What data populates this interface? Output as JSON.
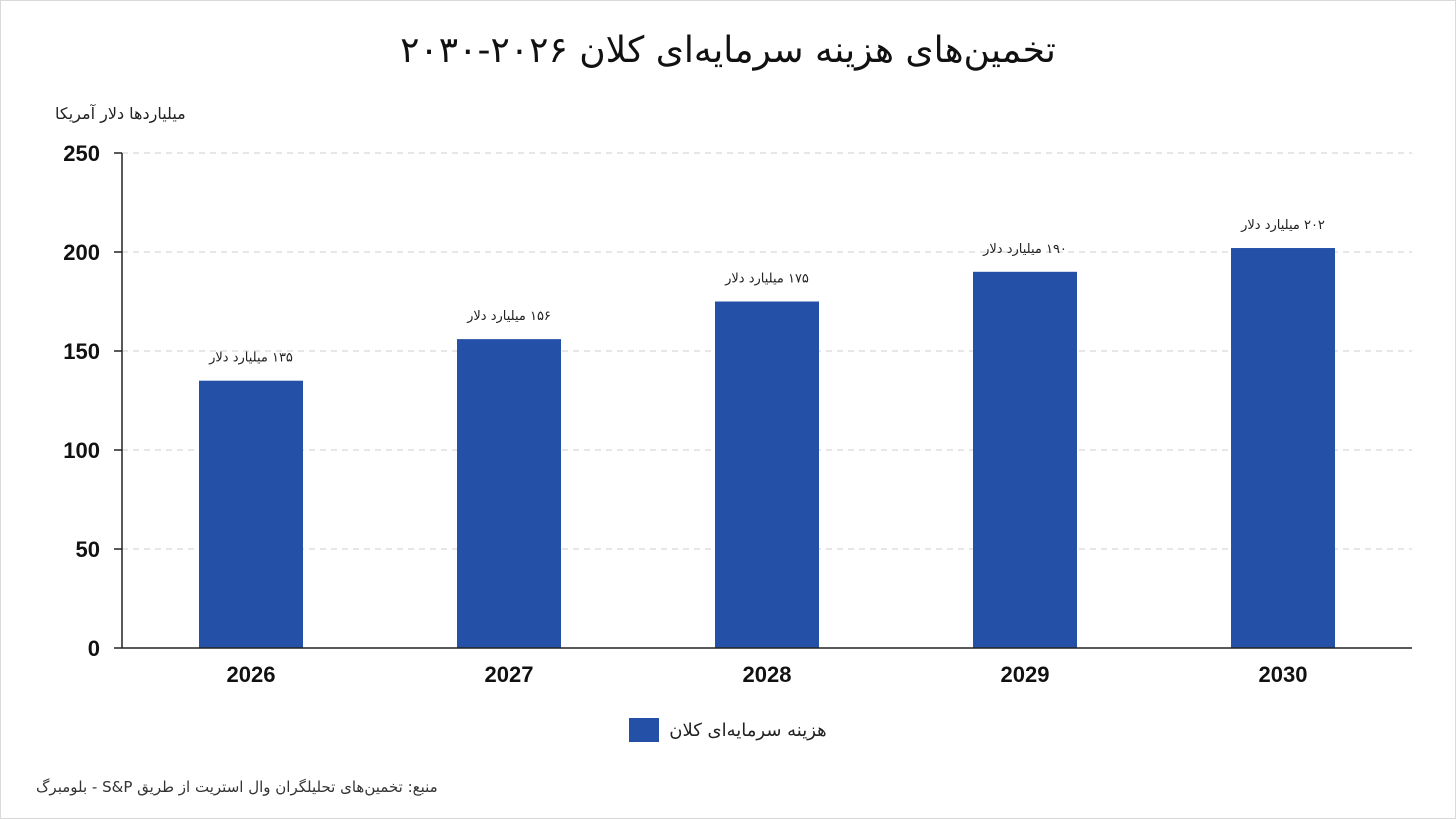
{
  "chart_data": {
    "type": "bar",
    "title": "تخمین‌های هزینه سرمایه‌ای کلان ۲۰۲۶-۲۰۳۰",
    "ylabel": "میلیاردها دلار آمریکا",
    "xlabel": "",
    "ylim": [
      0,
      250
    ],
    "yticks": [
      "0",
      "50",
      "100",
      "150",
      "200",
      "250"
    ],
    "grid": true,
    "legend_position": "bottom-center",
    "categories": [
      "2026",
      "2027",
      "2028",
      "2029",
      "2030"
    ],
    "series": [
      {
        "name": "هزینه سرمایه‌ای کلان",
        "color": "#2450a8",
        "values": [
          135,
          156,
          175,
          190,
          202
        ],
        "data_labels": [
          "۱۳۵ میلیارد دلار",
          "۱۵۶ میلیارد دلار",
          "۱۷۵ میلیارد دلار",
          "۱۹۰ میلیارد دلار",
          "۲۰۲ میلیارد دلار"
        ]
      }
    ]
  },
  "source_text": "منبع: تخمین‌های تحلیلگران وال استریت از طریق S&P - بلومبرگ"
}
